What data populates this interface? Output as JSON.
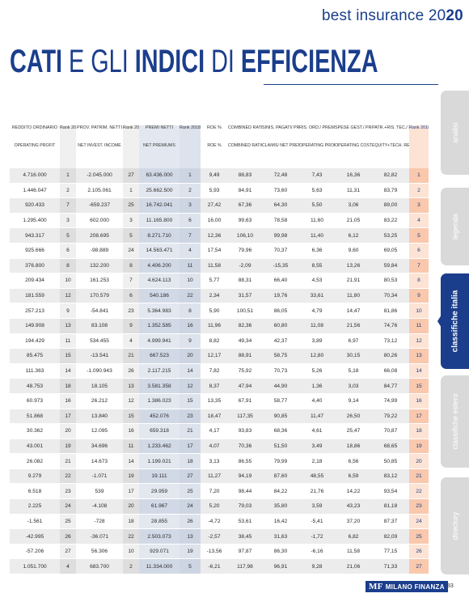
{
  "header": {
    "brand": "best insurance",
    "year_a": "20",
    "year_b": "20"
  },
  "title": {
    "p1": "CATI",
    "p2": " E GLI ",
    "p3": "INDICI",
    "p4": " DI ",
    "p5": "EFFICIENZA"
  },
  "columns": [
    {
      "it": "REDDITO ORDINARIO",
      "en": "OPERATING PROFIT"
    },
    {
      "it": "Rank 2018",
      "en": ""
    },
    {
      "it": "PROV. PATRIM. NETTI",
      "en": "NET INVEST. INCOME"
    },
    {
      "it": "Rank 2018",
      "en": ""
    },
    {
      "it": "PREMI NETTI",
      "en": "NET PREMIUMS"
    },
    {
      "it": "Rank 2018",
      "en": ""
    },
    {
      "it": "ROE %",
      "en": "ROE %"
    },
    {
      "it": "COMBINED RATIO %",
      "en": "COMBINED RATIO %"
    },
    {
      "it": "SINIS. PAGATI/ PREMI NETTI %",
      "en": "CLAIMS/ NET PREMIUMS"
    },
    {
      "it": "RIS. ORD./ PREMI NETTI %",
      "en": "OPERATING PROFIT/NET PREMIUMS"
    },
    {
      "it": "SPESE GEST./ PREMI NETTI %",
      "en": "OPERATING COSTS/NET PREMIUMS"
    },
    {
      "it": "PATR.+RIS. TEC./ PREMI + INV.",
      "en": "EQUITY+TECH. RESERVES/NET PREM. + INV."
    },
    {
      "it": "Rank 2018",
      "en": ""
    }
  ],
  "rows": [
    [
      "4.716.000",
      "1",
      "-2.045.000",
      "27",
      "63.436.000",
      "1",
      "9,49",
      "88,83",
      "72,48",
      "7,43",
      "16,36",
      "82,82",
      "1"
    ],
    [
      "1.446.047",
      "2",
      "2.105.061",
      "1",
      "25.662.500",
      "2",
      "5,93",
      "84,91",
      "73,60",
      "5,63",
      "11,31",
      "83,79",
      "2"
    ],
    [
      "920.433",
      "7",
      "-659.237",
      "25",
      "16.742.041",
      "3",
      "27,42",
      "67,36",
      "64,30",
      "5,50",
      "3,06",
      "89,00",
      "3"
    ],
    [
      "1.295.400",
      "3",
      "602.000",
      "3",
      "11.165.800",
      "6",
      "16,00",
      "99,63",
      "78,58",
      "11,60",
      "21,05",
      "83,22",
      "4"
    ],
    [
      "943.317",
      "5",
      "208.695",
      "5",
      "8.271.710",
      "7",
      "12,36",
      "106,10",
      "99,98",
      "11,40",
      "6,12",
      "53,25",
      "5"
    ],
    [
      "925.666",
      "6",
      "-98.889",
      "24",
      "14.563.471",
      "4",
      "17,54",
      "79,96",
      "70,37",
      "6,36",
      "9,60",
      "69,05",
      "6"
    ],
    [
      "376.800",
      "8",
      "132.200",
      "8",
      "4.406.200",
      "11",
      "11,58",
      "-2,09",
      "-15,35",
      "8,55",
      "13,26",
      "59,84",
      "7"
    ],
    [
      "209.434",
      "10",
      "161.253",
      "7",
      "4.624.113",
      "10",
      "5,77",
      "88,31",
      "66,40",
      "4,53",
      "21,91",
      "80,53",
      "8"
    ],
    [
      "181.559",
      "12",
      "170.579",
      "6",
      "540.186",
      "22",
      "2,34",
      "31,57",
      "19,76",
      "33,61",
      "11,80",
      "70,34",
      "9"
    ],
    [
      "257.213",
      "9",
      "-54.841",
      "23",
      "5.364.983",
      "8",
      "5,90",
      "100,51",
      "86,05",
      "4,79",
      "14,47",
      "81,86",
      "10"
    ],
    [
      "149.908",
      "13",
      "83.108",
      "9",
      "1.352.585",
      "16",
      "11,96",
      "82,36",
      "60,80",
      "11,08",
      "21,56",
      "74,76",
      "11"
    ],
    [
      "194.429",
      "11",
      "534.455",
      "4",
      "4.999.941",
      "9",
      "8,82",
      "49,34",
      "42,37",
      "3,89",
      "6,97",
      "73,12",
      "12"
    ],
    [
      "85.475",
      "15",
      "-13.541",
      "21",
      "667.523",
      "20",
      "12,17",
      "88,91",
      "58,75",
      "12,80",
      "30,15",
      "80,26",
      "13"
    ],
    [
      "111.363",
      "14",
      "-1.090.943",
      "26",
      "2.117.215",
      "14",
      "7,82",
      "75,92",
      "70,73",
      "5,26",
      "5,18",
      "66,08",
      "14"
    ],
    [
      "48.753",
      "18",
      "18.105",
      "13",
      "3.581.358",
      "12",
      "8,37",
      "47,94",
      "44,90",
      "1,36",
      "3,03",
      "84,77",
      "15"
    ],
    [
      "60.973",
      "16",
      "26.212",
      "12",
      "1.386.023",
      "15",
      "13,35",
      "67,91",
      "58,77",
      "4,40",
      "9,14",
      "74,99",
      "16"
    ],
    [
      "51.868",
      "17",
      "13.840",
      "15",
      "452.076",
      "23",
      "18,47",
      "117,35",
      "90,85",
      "11,47",
      "26,50",
      "79,22",
      "17"
    ],
    [
      "30.362",
      "20",
      "12.095",
      "16",
      "659.318",
      "21",
      "4,17",
      "93,83",
      "68,36",
      "4,61",
      "25,47",
      "70,87",
      "18"
    ],
    [
      "43.001",
      "19",
      "34.696",
      "11",
      "1.233.462",
      "17",
      "4,07",
      "70,36",
      "51,50",
      "3,49",
      "18,86",
      "68,65",
      "19"
    ],
    [
      "26.082",
      "21",
      "14.673",
      "14",
      "1.199.021",
      "18",
      "3,13",
      "86,55",
      "79,99",
      "2,18",
      "6,56",
      "50,85",
      "20"
    ],
    [
      "9.279",
      "22",
      "-1.071",
      "19",
      "19.111",
      "27",
      "11,27",
      "94,19",
      "87,60",
      "48,55",
      "6,59",
      "83,12",
      "21"
    ],
    [
      "6.518",
      "23",
      "539",
      "17",
      "29.959",
      "25",
      "7,20",
      "98,44",
      "84,22",
      "21,76",
      "14,22",
      "93,54",
      "22"
    ],
    [
      "2.225",
      "24",
      "-4.108",
      "20",
      "61.967",
      "24",
      "5,20",
      "79,03",
      "35,80",
      "3,59",
      "43,23",
      "81,18",
      "23"
    ],
    [
      "-1.561",
      "25",
      "-728",
      "18",
      "28.855",
      "26",
      "-4,72",
      "53,61",
      "16,42",
      "-5,41",
      "37,20",
      "87,37",
      "24"
    ],
    [
      "-42.995",
      "26",
      "-36.071",
      "22",
      "2.503.073",
      "13",
      "-2,57",
      "38,45",
      "31,63",
      "-1,72",
      "6,82",
      "82,09",
      "25"
    ],
    [
      "-57.206",
      "27",
      "56.306",
      "10",
      "929.071",
      "19",
      "-13,56",
      "97,87",
      "86,30",
      "-6,16",
      "11,58",
      "77,15",
      "26"
    ],
    [
      "1.051.700",
      "4",
      "683.700",
      "2",
      "11.334.000",
      "5",
      "-6,21",
      "117,98",
      "96,91",
      "9,28",
      "21,06",
      "71,33",
      "27"
    ]
  ],
  "tabs": [
    "analisi",
    "legenda",
    "classifiche italia",
    "classifiche estero",
    "directory"
  ],
  "footer": {
    "logo_mf": "MF",
    "logo_text": "MILANO FINANZA",
    "page": "83"
  },
  "colors": {
    "accent": "#1b3e8c",
    "rank_highlight": "#f9c8ad",
    "tab_inactive": "#d9d9d9"
  }
}
